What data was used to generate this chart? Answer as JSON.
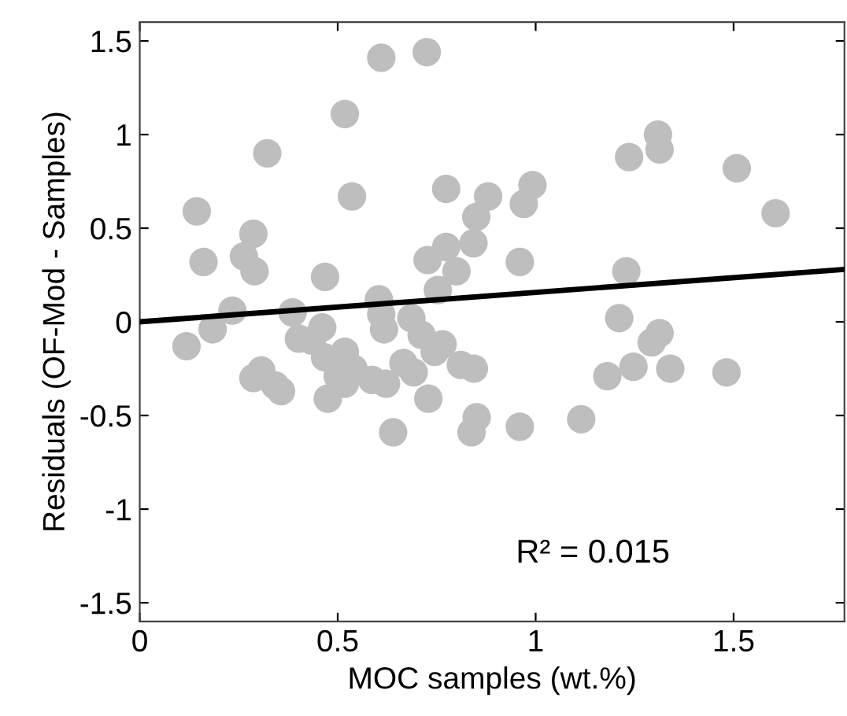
{
  "chart_data": {
    "type": "scatter",
    "xlabel": "MOC samples (wt.%)",
    "ylabel": "Residuals (OF-Mod - Samples)",
    "xlim": [
      0,
      1.78
    ],
    "xticks": [
      0,
      0.5,
      1,
      1.5
    ],
    "ylim": [
      -1.6,
      1.6
    ],
    "yticks": [
      -1.5,
      -1,
      -0.5,
      0,
      0.5,
      1,
      1.5
    ],
    "grid": false,
    "marker": "circle",
    "annotations": [
      "R² = 0.015"
    ],
    "series": [
      {
        "color": "#bebebe",
        "x": [
          0.144,
          0.161,
          0.322,
          0.518,
          0.61,
          0.725,
          0.536,
          0.774,
          0.287,
          0.263,
          0.29,
          0.468,
          0.727,
          0.774,
          0.8,
          0.843,
          0.85,
          0.88,
          0.753,
          0.604,
          0.61,
          0.617,
          0.686,
          0.234,
          0.386,
          0.184,
          0.97,
          0.992,
          0.96,
          1.236,
          1.309,
          1.313,
          1.508,
          1.606,
          1.229,
          1.211,
          1.313,
          1.293,
          1.181,
          1.247,
          1.34,
          1.482,
          0.851,
          0.838,
          0.96,
          1.115,
          0.118,
          0.461,
          0.402,
          0.435,
          0.287,
          0.307,
          0.357,
          0.342,
          0.475,
          0.468,
          0.518,
          0.54,
          0.518,
          0.5,
          0.587,
          0.622,
          0.712,
          0.745,
          0.765,
          0.666,
          0.692,
          0.729,
          0.64,
          0.811,
          0.844
        ],
        "values": [
          0.59,
          0.32,
          0.9,
          1.11,
          1.41,
          1.44,
          0.67,
          0.71,
          0.47,
          0.35,
          0.27,
          0.24,
          0.33,
          0.4,
          0.27,
          0.42,
          0.56,
          0.67,
          0.17,
          0.12,
          0.04,
          -0.04,
          0.02,
          0.06,
          0.05,
          -0.04,
          0.63,
          0.73,
          0.32,
          0.88,
          1.0,
          0.92,
          0.82,
          0.58,
          0.27,
          0.02,
          -0.06,
          -0.11,
          -0.29,
          -0.24,
          -0.25,
          -0.27,
          -0.51,
          -0.59,
          -0.56,
          -0.52,
          -0.13,
          -0.03,
          -0.09,
          -0.1,
          -0.3,
          -0.26,
          -0.37,
          -0.34,
          -0.41,
          -0.19,
          -0.16,
          -0.25,
          -0.33,
          -0.29,
          -0.31,
          -0.33,
          -0.07,
          -0.16,
          -0.12,
          -0.22,
          -0.27,
          -0.41,
          -0.59,
          -0.23,
          -0.25
        ]
      },
      {
        "type": "line",
        "color": "#000000",
        "x": [
          0,
          1.78
        ],
        "values": [
          0.0,
          0.28
        ],
        "marker": "none",
        "line_style": "solid"
      }
    ]
  }
}
